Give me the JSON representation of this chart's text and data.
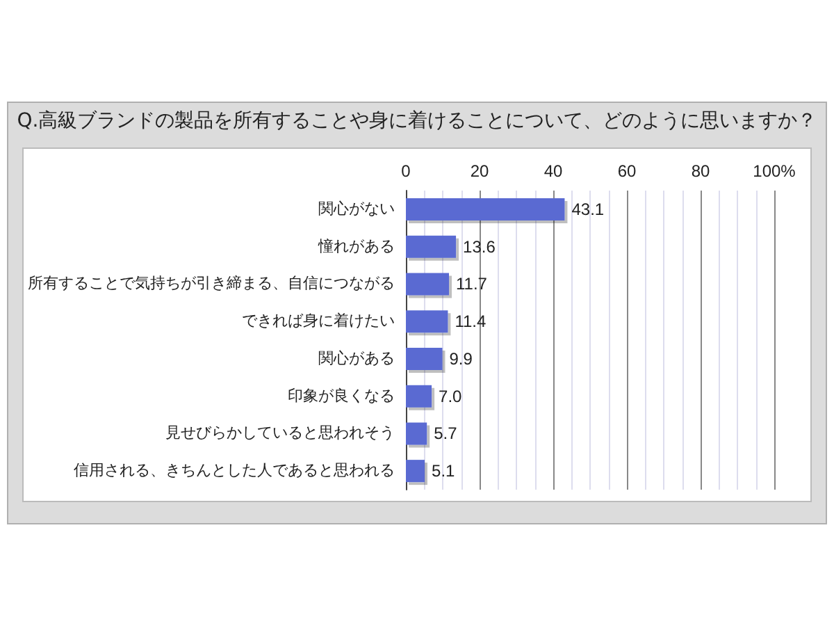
{
  "chart_data": {
    "type": "bar",
    "orientation": "horizontal",
    "title": "Q.高級ブランドの製品を所有することや身に着けることについて、どのように思いますか？",
    "categories": [
      "関心がない",
      "憧れがある",
      "所有することで気持ちが引き締まる、自信につながる",
      "できれば身に着けたい",
      "関心がある",
      "印象が良くなる",
      "見せびらかしていると思われそう",
      "信用される、きちんとした人であると思われる"
    ],
    "values": [
      43.1,
      13.6,
      11.7,
      11.4,
      9.9,
      7.0,
      5.7,
      5.1
    ],
    "color": "#5a6bd2",
    "xlim": [
      0,
      100
    ],
    "xticks": [
      0,
      20,
      40,
      60,
      80,
      {
        "value": 100,
        "label": "100%"
      }
    ],
    "grid": "x",
    "value_labels": [
      "43.1",
      "13.6",
      "11.7",
      "11.4",
      "9.9",
      "7.0",
      "5.7",
      "5.1"
    ]
  }
}
